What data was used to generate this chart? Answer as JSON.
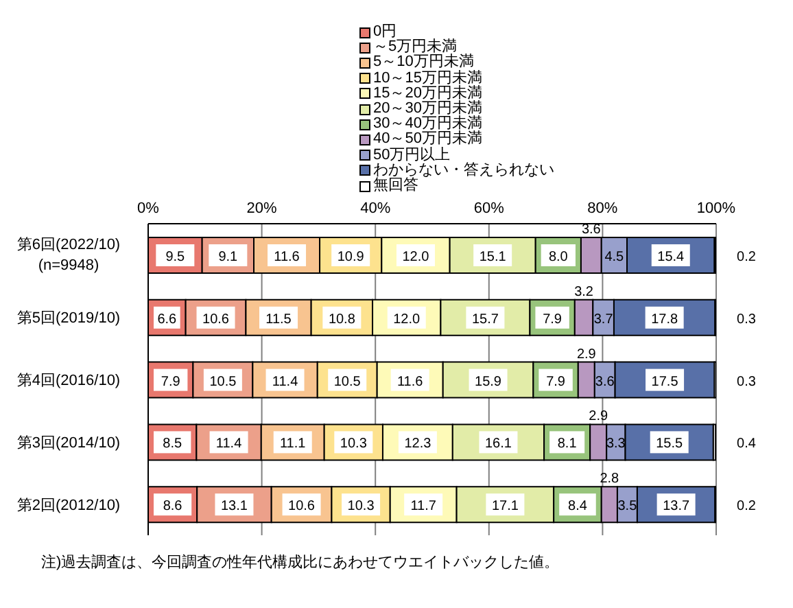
{
  "chart_data": {
    "type": "bar",
    "orientation": "horizontal",
    "stacked": true,
    "grid": "x",
    "legend": "top",
    "categories": [
      "第6回(2022/10)\n(n=9948)",
      "第5回(2019/10)",
      "第4回(2016/10)",
      "第3回(2014/10)",
      "第2回(2012/10)"
    ],
    "xlim": [
      0,
      100
    ],
    "xticks": [
      {
        "value": 0,
        "label": "0%"
      },
      {
        "value": 20,
        "label": "20%"
      },
      {
        "value": 40,
        "label": "40%"
      },
      {
        "value": 60,
        "label": "60%"
      },
      {
        "value": 80,
        "label": "80%"
      },
      {
        "value": 100,
        "label": "100%"
      }
    ],
    "series": [
      {
        "name": "0円",
        "color": "#e8786e",
        "values": [
          9.5,
          6.6,
          7.9,
          8.5,
          8.6
        ],
        "value_labels": [
          "9.5",
          "6.6",
          "7.9",
          "8.5",
          "8.6"
        ]
      },
      {
        "name": "～5万円未満",
        "color": "#eca08a",
        "values": [
          9.1,
          10.6,
          10.5,
          11.4,
          13.1
        ],
        "value_labels": [
          "9.1",
          "10.6",
          "10.5",
          "11.4",
          "13.1"
        ]
      },
      {
        "name": "5～10万円未満",
        "color": "#f8c490",
        "values": [
          11.6,
          11.5,
          11.4,
          11.1,
          10.6
        ],
        "value_labels": [
          "11.6",
          "11.5",
          "11.4",
          "11.1",
          "10.6"
        ]
      },
      {
        "name": "10～15万円未満",
        "color": "#fde28e",
        "values": [
          10.9,
          10.8,
          10.5,
          10.3,
          10.3
        ],
        "value_labels": [
          "10.9",
          "10.8",
          "10.5",
          "10.3",
          "10.3"
        ]
      },
      {
        "name": "15～20万円未満",
        "color": "#fefab8",
        "values": [
          12.0,
          12.0,
          11.6,
          12.3,
          11.7
        ],
        "value_labels": [
          "12.0",
          "12.0",
          "11.6",
          "12.3",
          "11.7"
        ]
      },
      {
        "name": "20～30万円未満",
        "color": "#e2eca8",
        "values": [
          15.1,
          15.7,
          15.9,
          16.1,
          17.1
        ],
        "value_labels": [
          "15.1",
          "15.7",
          "15.9",
          "16.1",
          "17.1"
        ]
      },
      {
        "name": "30～40万円未満",
        "color": "#98c47c",
        "values": [
          8.0,
          7.9,
          7.9,
          8.1,
          8.4
        ],
        "value_labels": [
          "8.0",
          "7.9",
          "7.9",
          "8.1",
          "8.4"
        ]
      },
      {
        "name": "40～50万円未満",
        "color": "#b898c0",
        "values": [
          3.6,
          3.2,
          2.9,
          2.9,
          2.8
        ],
        "value_labels": [
          "3.6",
          "3.2",
          "2.9",
          "2.9",
          "2.8"
        ]
      },
      {
        "name": "50万円以上",
        "color": "#98a0cc",
        "values": [
          4.5,
          3.7,
          3.6,
          3.3,
          3.5
        ],
        "value_labels": [
          "4.5",
          "3.7",
          "3.6",
          "3.3",
          "3.5"
        ]
      },
      {
        "name": "わからない・答えられない",
        "color": "#5870a8",
        "values": [
          15.4,
          17.8,
          17.5,
          15.5,
          13.7
        ],
        "value_labels": [
          "15.4",
          "17.8",
          "17.5",
          "15.5",
          "13.7"
        ]
      },
      {
        "name": "無回答",
        "color": "#ffffff",
        "values": [
          0.2,
          0.3,
          0.3,
          0.4,
          0.2
        ],
        "value_labels": [
          "0.2",
          "0.3",
          "0.3",
          "0.4",
          "0.2"
        ]
      }
    ],
    "annotations": [
      "注)過去調査は、今回調査の性年代構成比にあわせてウエイトバックした値。"
    ]
  }
}
